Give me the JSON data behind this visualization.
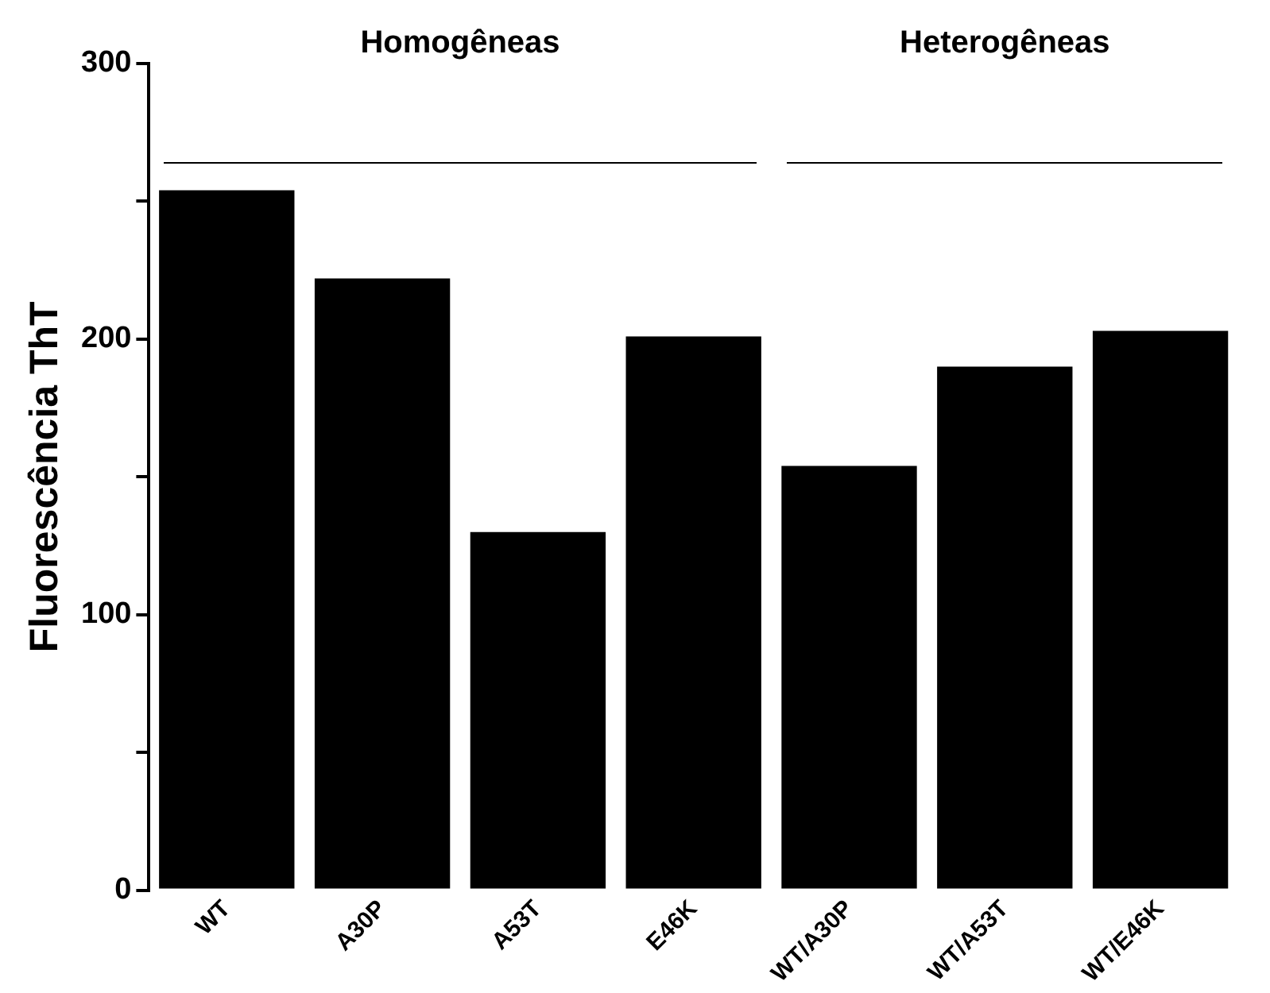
{
  "chart_data": {
    "type": "bar",
    "ylabel": "Fluorescência ThT",
    "categories": [
      "WT",
      "A30P",
      "A53T",
      "E46K",
      "WT/A30P",
      "WT/A53T",
      "WT/E46K"
    ],
    "values": [
      254,
      222,
      130,
      201,
      154,
      190,
      203
    ],
    "color": "#000000",
    "ylim": [
      0,
      300
    ],
    "yticks": [
      0,
      {
        "value": 50,
        "label": null
      },
      100,
      {
        "value": 150,
        "label": null
      },
      200,
      {
        "value": 250,
        "label": null
      },
      300
    ],
    "annotations": [
      "Homogêneas",
      "Heterogêneas"
    ],
    "grid": false,
    "legend": false
  }
}
